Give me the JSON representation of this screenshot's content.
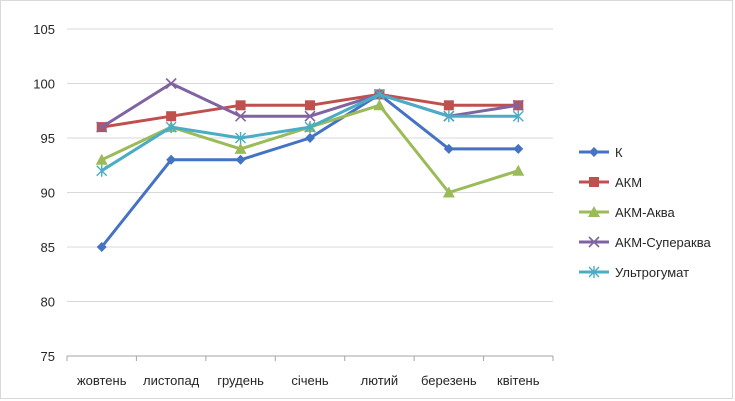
{
  "chart_data": {
    "type": "line",
    "title": "",
    "xlabel": "",
    "ylabel": "",
    "categories": [
      "жовтень",
      "листопад",
      "грудень",
      "січень",
      "лютий",
      "березень",
      "квітень"
    ],
    "ylim": [
      75,
      105
    ],
    "yticks": [
      "75",
      "80",
      "85",
      "90",
      "95",
      "100",
      "105"
    ],
    "grid": "horizontal",
    "legend_position": "right",
    "series": [
      {
        "name": "К",
        "values": [
          85,
          93,
          93,
          95,
          99,
          94,
          94
        ],
        "color": "#4472c4",
        "marker": "diamond"
      },
      {
        "name": "АКМ",
        "values": [
          96,
          97,
          98,
          98,
          99,
          98,
          98
        ],
        "color": "#c0504d",
        "marker": "square"
      },
      {
        "name": "АКМ-Аква",
        "values": [
          93,
          96,
          94,
          96,
          98,
          90,
          92
        ],
        "color": "#9bbb59",
        "marker": "triangle"
      },
      {
        "name": "АКМ-Супераква",
        "values": [
          96,
          100,
          97,
          97,
          99,
          97,
          98
        ],
        "color": "#8064a2",
        "marker": "x"
      },
      {
        "name": "Ультрогумат",
        "values": [
          92,
          96,
          95,
          96,
          99,
          97,
          97
        ],
        "color": "#4bacc6",
        "marker": "star"
      }
    ]
  }
}
